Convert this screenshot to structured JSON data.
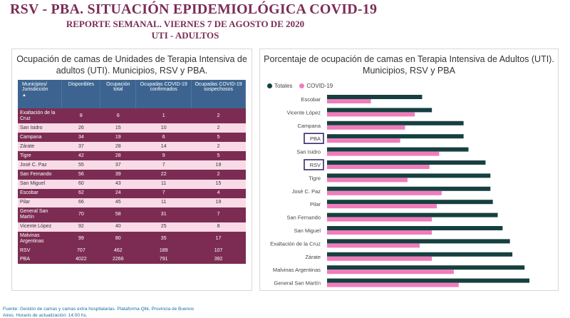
{
  "header": {
    "title": "RSV - PBA. SITUACIÓN EPIDEMIOLÓGICA COVID-19",
    "subtitle1": "REPORTE SEMANAL. VIERNES 7 DE AGOSTO DE 2020",
    "subtitle2": "UTI - ADULTOS"
  },
  "table_panel": {
    "title": "Ocupación de camas de Unidades de Terapia Intensiva de adultos (UTI). Municipios, RSV y PBA.",
    "columns": [
      "Municipios/ Jurisdicción",
      "Disponibles",
      "Ocupación total",
      "Ocupadas COVID-19 confirmados",
      "Ocupadas COVID-19 sospechosos"
    ],
    "rows": [
      {
        "name": "Exaltación de la Cruz",
        "disponibles": "8",
        "ocupacion": "6",
        "confirmados": "1",
        "sospechosos": "2"
      },
      {
        "name": "San Isidro",
        "disponibles": "26",
        "ocupacion": "15",
        "confirmados": "10",
        "sospechosos": "2"
      },
      {
        "name": "Campana",
        "disponibles": "34",
        "ocupacion": "19",
        "confirmados": "6",
        "sospechosos": "5"
      },
      {
        "name": "Zárate",
        "disponibles": "37",
        "ocupacion": "28",
        "confirmados": "14",
        "sospechosos": "2"
      },
      {
        "name": "Tigre",
        "disponibles": "42",
        "ocupacion": "28",
        "confirmados": "9",
        "sospechosos": "5"
      },
      {
        "name": "José C. Paz",
        "disponibles": "55",
        "ocupacion": "37",
        "confirmados": "7",
        "sospechosos": "19"
      },
      {
        "name": "San Fernando",
        "disponibles": "56",
        "ocupacion": "39",
        "confirmados": "22",
        "sospechosos": "2"
      },
      {
        "name": "San Miguel",
        "disponibles": "60",
        "ocupacion": "43",
        "confirmados": "11",
        "sospechosos": "15"
      },
      {
        "name": "Escobar",
        "disponibles": "62",
        "ocupacion": "24",
        "confirmados": "7",
        "sospechosos": "4"
      },
      {
        "name": "Pilar",
        "disponibles": "66",
        "ocupacion": "45",
        "confirmados": "11",
        "sospechosos": "19"
      },
      {
        "name": "General San Martín",
        "disponibles": "70",
        "ocupacion": "58",
        "confirmados": "31",
        "sospechosos": "7"
      },
      {
        "name": "Vicente López",
        "disponibles": "92",
        "ocupacion": "40",
        "confirmados": "25",
        "sospechosos": "8"
      },
      {
        "name": "Malvinas Argentinas",
        "disponibles": "99",
        "ocupacion": "80",
        "confirmados": "35",
        "sospechosos": "17"
      }
    ],
    "totals": [
      {
        "name": "RSV",
        "disponibles": "707",
        "ocupacion": "462",
        "confirmados": "189",
        "sospechosos": "107"
      },
      {
        "name": "PBA",
        "disponibles": "4022",
        "ocupacion": "2266",
        "confirmados": "791",
        "sospechosos": "392"
      }
    ]
  },
  "footer": {
    "line1": "Fuente: Gestión de camas y camas extra hospitalarias. Plataforma Qlik, Provincia de Buenos",
    "line2": "Aires. Horario de actualización: 14:00 hs."
  },
  "chart_panel": {
    "title": "Porcentaje de ocupación de camas en Terapia Intensiva de Adultos (UTI). Municipios, RSV y PBA"
  },
  "colors": {
    "totales": "#16403f",
    "covid": "#f07cbc",
    "highlight": "#3b2a6b"
  },
  "chart_data": {
    "type": "bar",
    "orientation": "horizontal",
    "categories": [
      "Escobar",
      "Vicente López",
      "Campana",
      "PBA",
      "San Isidro",
      "RSV",
      "Tigre",
      "José C. Paz",
      "Pilar",
      "San Fernando",
      "San Miguel",
      "Exaltación de la Cruz",
      "Zárate",
      "Malvinas Argentinas",
      "General San Martín"
    ],
    "highlighted": [
      "PBA",
      "RSV"
    ],
    "series": [
      {
        "name": "Totales",
        "values": [
          39,
          43,
          56,
          56,
          58,
          65,
          67,
          67,
          68,
          70,
          72,
          75,
          76,
          81,
          83
        ]
      },
      {
        "name": "COVID-19",
        "values": [
          18,
          36,
          32,
          30,
          46,
          42,
          33,
          47,
          45,
          43,
          43,
          38,
          43,
          52,
          54
        ]
      }
    ],
    "xticks": [
      "0%",
      "10%",
      "20%",
      "30%",
      "40%",
      "50%",
      "60%",
      "70%",
      "80%",
      "90%"
    ],
    "xlim": [
      0,
      90
    ],
    "legend": "top-left"
  }
}
